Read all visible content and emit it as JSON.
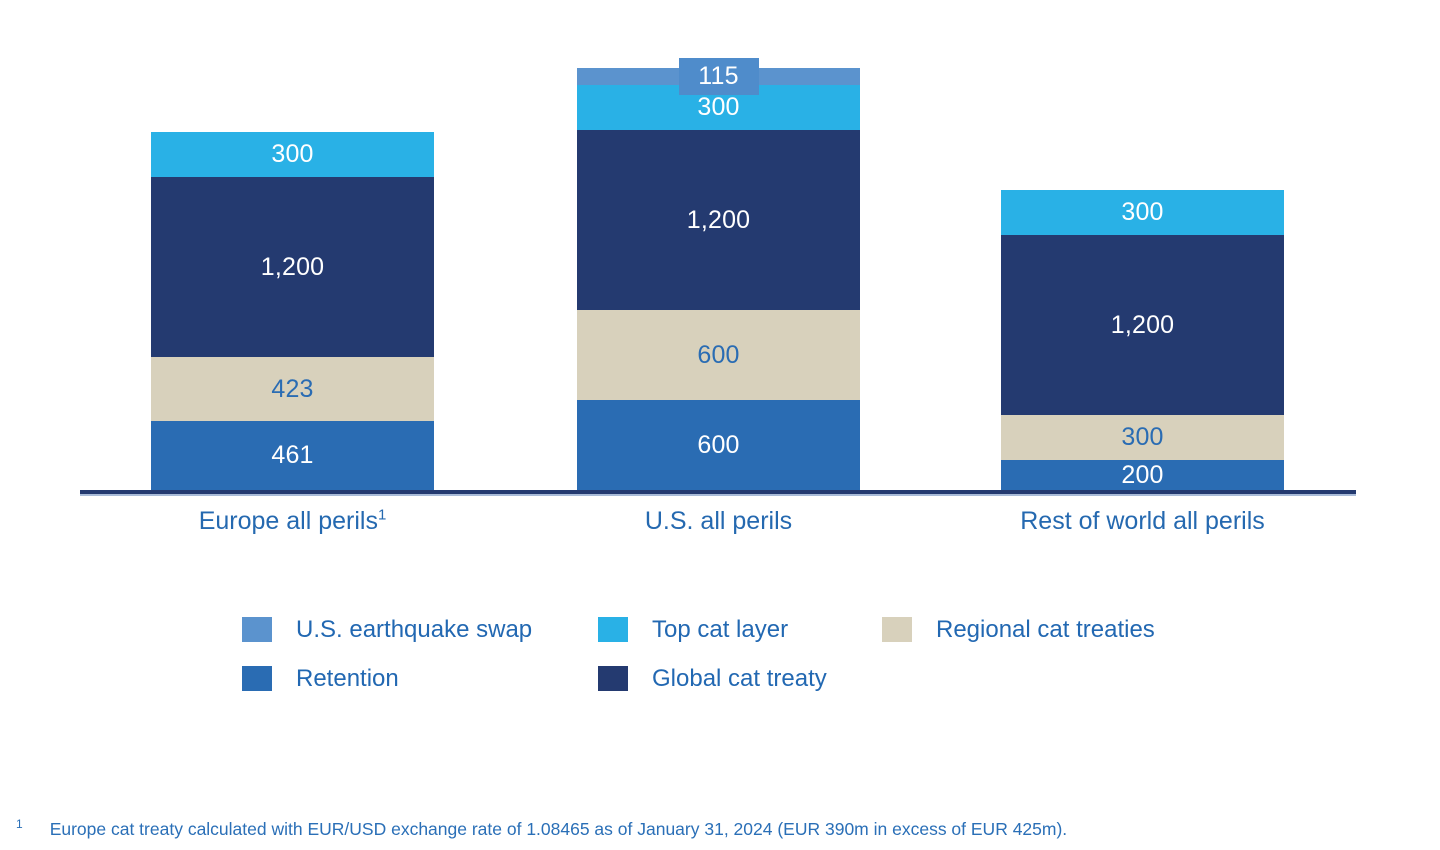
{
  "chart_data": {
    "type": "bar",
    "stacked": true,
    "grid": false,
    "legend_position": "bottom",
    "categories": [
      "Europe all perils",
      "U.S. all perils",
      "Rest of world all perils"
    ],
    "bars": [
      {
        "category": "Europe all perils",
        "category_sup": "1",
        "total": 2384,
        "segments": [
          {
            "series": "Top cat layer",
            "value": 300,
            "label": "300"
          },
          {
            "series": "Global cat treaty",
            "value": 1200,
            "label": "1,200"
          },
          {
            "series": "Regional cat treaties",
            "value": 423,
            "label": "423"
          },
          {
            "series": "Retention",
            "value": 461,
            "label": "461"
          }
        ]
      },
      {
        "category": "U.S. all perils",
        "category_sup": "",
        "total": 2815,
        "segments": [
          {
            "series": "U.S. earthquake swap",
            "value": 115,
            "label": "115",
            "badge": true
          },
          {
            "series": "Top cat layer",
            "value": 300,
            "label": "300"
          },
          {
            "series": "Global cat treaty",
            "value": 1200,
            "label": "1,200"
          },
          {
            "series": "Regional cat treaties",
            "value": 600,
            "label": "600"
          },
          {
            "series": "Retention",
            "value": 600,
            "label": "600"
          }
        ]
      },
      {
        "category": "Rest of world all perils",
        "category_sup": "",
        "total": 2000,
        "segments": [
          {
            "series": "Top cat layer",
            "value": 300,
            "label": "300"
          },
          {
            "series": "Global cat treaty",
            "value": 1200,
            "label": "1,200"
          },
          {
            "series": "Regional cat treaties",
            "value": 300,
            "label": "300"
          },
          {
            "series": "Retention",
            "value": 200,
            "label": "200"
          }
        ]
      }
    ],
    "series_colors": {
      "U.S. earthquake swap": "#5B93CE",
      "Top cat layer": "#29B1E6",
      "Global cat treaty": "#243A70",
      "Regional cat treaties": "#D8D1BC",
      "Retention": "#2A6CB3"
    },
    "value_label_color": "#FFFFFF",
    "value_label_on_light_color": "#2A6CB3",
    "badge_color": "#4F8CCB",
    "axis_color": "#243A70"
  },
  "legend": {
    "items": [
      {
        "label": "U.S. earthquake swap",
        "series": "U.S. earthquake swap"
      },
      {
        "label": "Top cat layer",
        "series": "Top cat layer"
      },
      {
        "label": "Regional cat treaties",
        "series": "Regional cat treaties"
      },
      {
        "label": "Retention",
        "series": "Retention"
      },
      {
        "label": "Global cat treaty",
        "series": "Global cat treaty"
      }
    ]
  },
  "footnote": {
    "sup": "1",
    "text": "Europe cat treaty calculated with EUR/USD exchange rate of 1.08465 as of January 31, 2024 (EUR 390m in excess of EUR 425m)."
  },
  "colors": {
    "category_text": "#2569B0",
    "legend_text": "#2268B2",
    "footnote_text": "#2A6FB7"
  }
}
